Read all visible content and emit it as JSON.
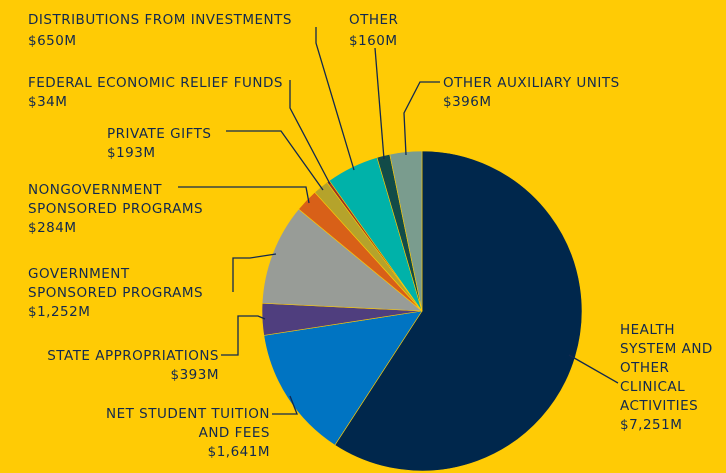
{
  "chart_data": {
    "type": "pie",
    "title": "",
    "slices": [
      {
        "label": [
          "HEALTH",
          "SYSTEM AND",
          "OTHER",
          "CLINICAL",
          "ACTIVITIES"
        ],
        "value_label": "$7,251M",
        "value": 7251,
        "color": "#00274C"
      },
      {
        "label": [
          "NET STUDENT TUITION",
          "AND FEES"
        ],
        "value_label": "$1,641M",
        "value": 1641,
        "color": "#0074C2"
      },
      {
        "label": [
          "STATE APPROPRIATIONS"
        ],
        "value_label": "$393M",
        "value": 393,
        "color": "#4F3E7E"
      },
      {
        "label": [
          "GOVERNMENT",
          "SPONSORED PROGRAMS"
        ],
        "value_label": "$1,252M",
        "value": 1252,
        "color": "#989C97"
      },
      {
        "label": [
          "NONGOVERNMENT",
          "SPONSORED PROGRAMS"
        ],
        "value_label": "$284M",
        "value": 284,
        "color": "#D86018"
      },
      {
        "label": [
          "PRIVATE GIFTS"
        ],
        "value_label": "$193M",
        "value": 193,
        "color": "#B5A32B"
      },
      {
        "label": [
          "FEDERAL ECONOMIC RELIEF FUNDS"
        ],
        "value_label": "$34M",
        "value": 34,
        "color": "#9A3324"
      },
      {
        "label": [
          "DISTRIBUTIONS FROM INVESTMENTS"
        ],
        "value_label": "$650M",
        "value": 650,
        "color": "#00B2A9"
      },
      {
        "label": [
          "OTHER"
        ],
        "value_label": "$160M",
        "value": 160,
        "color": "#124B48"
      },
      {
        "label": [
          "OTHER AUXILIARY UNITS"
        ],
        "value_label": "$396M",
        "value": 396,
        "color": "#7A9C8E"
      }
    ]
  }
}
